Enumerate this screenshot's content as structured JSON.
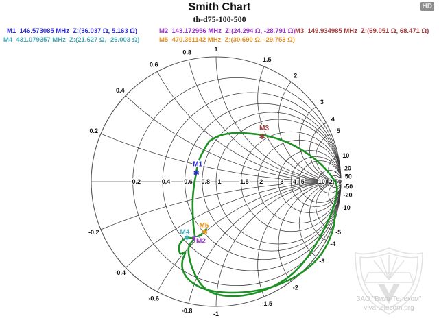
{
  "header": {
    "title": "Smith Chart",
    "subtitle": "th-d75-100-500",
    "hd_badge": "HD"
  },
  "watermark": {
    "company": "ЗАО \"Виза-Телеком\"",
    "site": "viva-telecom.org"
  },
  "chart_data": {
    "type": "smith",
    "title": "Smith Chart",
    "device_label": "th-d75-100-500",
    "normalization_ohms": 50,
    "grid_values": [
      0.2,
      0.4,
      0.6,
      0.8,
      1,
      1.5,
      2,
      3,
      4,
      5,
      10,
      20,
      50
    ],
    "axis_labels": [
      "0.2",
      "0.4",
      "0.6",
      "0.8",
      "1",
      "1.5",
      "2",
      "3",
      "4",
      "5",
      "10",
      "20",
      "50"
    ],
    "grid_color": "#3a3a3a",
    "axis_color": "#a2a2a2",
    "outer_color": "#555555",
    "trace_color": "#1e9125",
    "markers": [
      {
        "id": "M1",
        "freq_mhz": "146.573085",
        "z_ohms": {
          "re": 36.037,
          "im": 5.163
        },
        "z_text": "Z:(36.037 Ω, 5.163 Ω)",
        "color": "#2b2bd0"
      },
      {
        "id": "M2",
        "freq_mhz": "143.172956",
        "z_ohms": {
          "re": 24.294,
          "im": -28.791
        },
        "z_text": "Z:(24.294 Ω, -28.791 Ω)",
        "color": "#9a35c8"
      },
      {
        "id": "M3",
        "freq_mhz": "149.934985",
        "z_ohms": {
          "re": 69.051,
          "im": 68.471
        },
        "z_text": "Z:(69.051 Ω, 68.471 Ω)",
        "color": "#a03a3a"
      },
      {
        "id": "M4",
        "freq_mhz": "431.079357",
        "z_ohms": {
          "re": 21.627,
          "im": -26.003
        },
        "z_text": "Z:(21.627 Ω, -26.003 Ω)",
        "color": "#45aab6"
      },
      {
        "id": "M5",
        "freq_mhz": "470.351142",
        "z_ohms": {
          "re": 30.69,
          "im": -29.753
        },
        "z_text": "Z:(30.690 Ω, -29.753 Ω)",
        "color": "#e8901d"
      }
    ],
    "trace_loops": [
      [
        [
          -0.055,
          0.324
        ],
        [
          0.027,
          0.368
        ],
        [
          0.148,
          0.39
        ],
        [
          0.275,
          0.385
        ],
        [
          0.401,
          0.368
        ],
        [
          0.549,
          0.324
        ],
        [
          0.698,
          0.247
        ],
        [
          0.83,
          0.148
        ],
        [
          0.923,
          0.044
        ],
        [
          0.967,
          -0.038
        ],
        [
          0.956,
          -0.154
        ],
        [
          0.907,
          -0.291
        ],
        [
          0.835,
          -0.44
        ],
        [
          0.736,
          -0.599
        ],
        [
          0.615,
          -0.736
        ],
        [
          0.467,
          -0.835
        ],
        [
          0.302,
          -0.896
        ],
        [
          0.137,
          -0.918
        ],
        [
          -0.016,
          -0.896
        ],
        [
          -0.11,
          -0.835
        ],
        [
          -0.17,
          -0.742
        ],
        [
          -0.209,
          -0.632
        ],
        [
          -0.22,
          -0.533
        ],
        [
          -0.192,
          -0.478
        ],
        [
          -0.17,
          -0.451
        ],
        [
          -0.181,
          -0.357
        ],
        [
          -0.187,
          -0.247
        ],
        [
          -0.187,
          -0.137
        ],
        [
          -0.176,
          -0.027
        ],
        [
          -0.159,
          0.071
        ],
        [
          -0.143,
          0.154
        ],
        [
          -0.104,
          0.242
        ]
      ],
      [
        [
          -0.066,
          -0.357
        ],
        [
          -0.093,
          -0.401
        ],
        [
          -0.137,
          -0.434
        ],
        [
          -0.187,
          -0.451
        ],
        [
          -0.236,
          -0.451
        ],
        [
          -0.275,
          -0.478
        ],
        [
          -0.297,
          -0.522
        ],
        [
          -0.286,
          -0.577
        ],
        [
          -0.247,
          -0.566
        ],
        [
          -0.269,
          -0.632
        ],
        [
          -0.269,
          -0.698
        ],
        [
          -0.242,
          -0.758
        ],
        [
          -0.192,
          -0.808
        ],
        [
          -0.115,
          -0.852
        ],
        [
          -0.016,
          -0.879
        ],
        [
          0.126,
          -0.89
        ],
        [
          0.291,
          -0.879
        ],
        [
          0.456,
          -0.841
        ],
        [
          0.61,
          -0.775
        ],
        [
          0.742,
          -0.687
        ],
        [
          0.841,
          -0.582
        ],
        [
          0.901,
          -0.478
        ],
        [
          0.94,
          -0.368
        ],
        [
          0.956,
          -0.236
        ]
      ]
    ]
  }
}
